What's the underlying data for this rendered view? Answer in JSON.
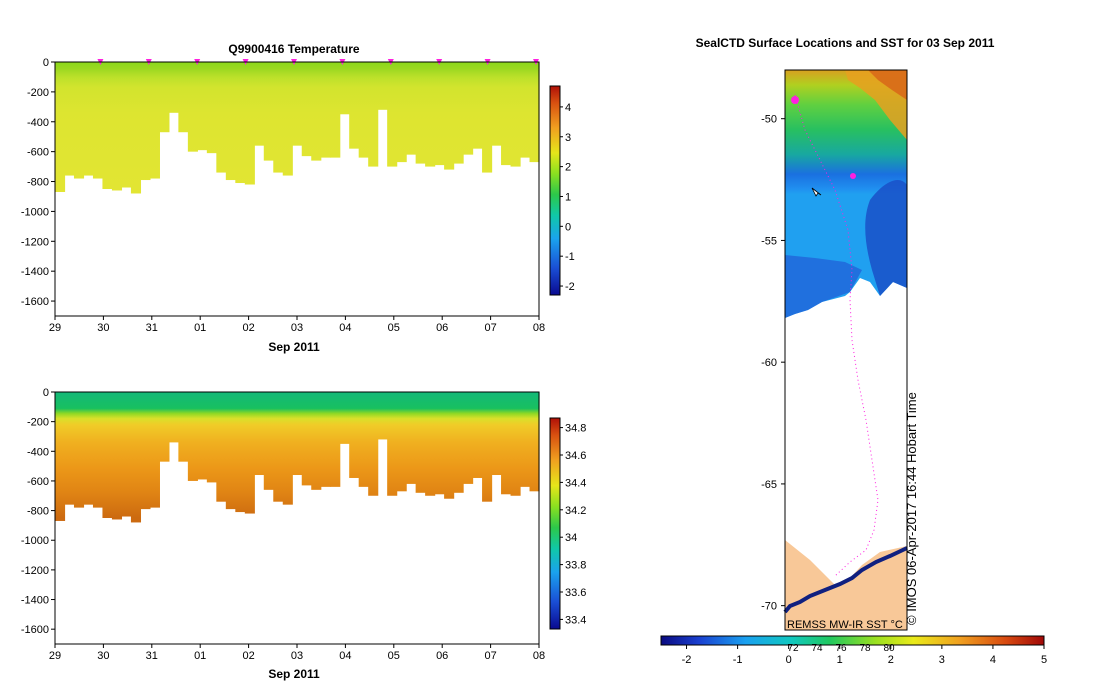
{
  "chart_data": [
    {
      "type": "heatmap",
      "title": "Q9900416  Temperature",
      "xlabel": "Sep 2011",
      "x_tick_labels": [
        "29",
        "30",
        "31",
        "01",
        "02",
        "03",
        "04",
        "05",
        "06",
        "07",
        "08"
      ],
      "y_tick_labels": [
        "0",
        "-200",
        "-400",
        "-600",
        "-800",
        "-1000",
        "-1200",
        "-1400",
        "-1600"
      ],
      "ylim": [
        -1700,
        0
      ],
      "colorbar": {
        "range": [
          -2.3,
          4.7
        ],
        "labels": [
          "4",
          "3",
          "2",
          "1",
          "0",
          "-1",
          "-2"
        ]
      },
      "profile_max_depth_m": [
        -870,
        -760,
        -780,
        -760,
        -780,
        -850,
        -860,
        -840,
        -880,
        -790,
        -780,
        -470,
        -340,
        -470,
        -600,
        -590,
        -610,
        -740,
        -790,
        -810,
        -820,
        -560,
        -660,
        -740,
        -760,
        -560,
        -630,
        -660,
        -640,
        -640,
        -350,
        -580,
        -640,
        -700,
        -320,
        -700,
        -670,
        -620,
        -680,
        -700,
        -690,
        -720,
        -680,
        -620,
        -580,
        -740,
        -560,
        -690,
        -700,
        -640,
        -670
      ]
    },
    {
      "type": "heatmap",
      "title": "",
      "xlabel": "Sep 2011",
      "x_tick_labels": [
        "29",
        "30",
        "31",
        "01",
        "02",
        "03",
        "04",
        "05",
        "06",
        "07",
        "08"
      ],
      "y_tick_labels": [
        "0",
        "-200",
        "-400",
        "-600",
        "-800",
        "-1000",
        "-1200",
        "-1400",
        "-1600"
      ],
      "ylim": [
        -1700,
        0
      ],
      "colorbar": {
        "range": [
          33.33,
          34.87
        ],
        "labels": [
          "34.8",
          "34.6",
          "34.4",
          "34.2",
          "34",
          "33.8",
          "33.6",
          "33.4"
        ]
      }
    },
    {
      "type": "heatmap",
      "title": "SealCTD Surface Locations and SST for 03 Sep 2011",
      "y_tick_labels": [
        "-50",
        "-55",
        "-60",
        "-65",
        "-70"
      ],
      "ylim": [
        -71,
        -48
      ],
      "annotations": [
        "REMSS MW-IR SST °C",
        "© IMOS 06-Apr-2017 16:44 Hobart Time"
      ],
      "colorbar": {
        "range": [
          -2.5,
          5
        ],
        "labels": [
          "-2",
          "-1",
          "0",
          "1",
          "2",
          "3",
          "4",
          "5"
        ]
      },
      "colorbar_upper_labels": [
        "72",
        "74",
        "76",
        "78",
        "80"
      ]
    }
  ]
}
